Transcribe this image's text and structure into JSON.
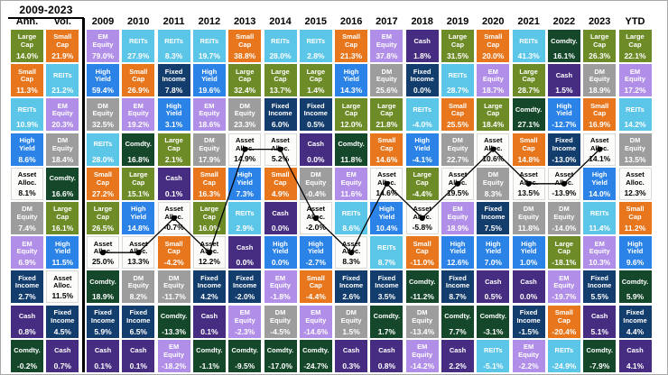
{
  "chart_data": {
    "type": "table",
    "title": "2009-2023",
    "subtype": "asset-class-returns-quilt",
    "line_series": "Asset Alloc.",
    "line_columns": [
      "2009",
      "2010",
      "2011",
      "2012",
      "2013",
      "2014",
      "2015",
      "2016",
      "2017",
      "2018",
      "2019",
      "2020",
      "2021",
      "2022",
      "2023"
    ],
    "assets": {
      "Large Cap": {
        "color": "#6d8b26",
        "text": "#ffffff"
      },
      "Small Cap": {
        "color": "#e8761d",
        "text": "#ffffff"
      },
      "REITs": {
        "color": "#5bc6e8",
        "text": "#ffffff"
      },
      "EM Equity": {
        "color": "#b18ee8",
        "text": "#ffffff"
      },
      "DM Equity": {
        "color": "#9d9d9d",
        "text": "#ffffff"
      },
      "High Yield": {
        "color": "#2b83e8",
        "text": "#ffffff"
      },
      "Fixed Income": {
        "color": "#133d6d",
        "text": "#ffffff"
      },
      "Asset Alloc.": {
        "color": "#fcfcfa",
        "text": "#000000"
      },
      "Cash": {
        "color": "#472d82",
        "text": "#ffffff"
      },
      "Comdty.": {
        "color": "#15482a",
        "text": "#ffffff"
      }
    },
    "columns": [
      {
        "label": "Ann.",
        "cells": [
          {
            "asset": "Large Cap",
            "value": "14.0%"
          },
          {
            "asset": "Small Cap",
            "value": "11.3%"
          },
          {
            "asset": "REITs",
            "value": "10.9%"
          },
          {
            "asset": "High Yield",
            "value": "8.6%"
          },
          {
            "asset": "Asset Alloc.",
            "value": "8.1%"
          },
          {
            "asset": "DM Equity",
            "value": "7.4%"
          },
          {
            "asset": "EM Equity",
            "value": "6.9%"
          },
          {
            "asset": "Fixed Income",
            "value": "2.7%"
          },
          {
            "asset": "Cash",
            "value": "0.8%"
          },
          {
            "asset": "Comdty.",
            "value": "-0.2%"
          }
        ]
      },
      {
        "label": "Vol.",
        "cells": [
          {
            "asset": "Small Cap",
            "value": "21.9%"
          },
          {
            "asset": "REITs",
            "value": "21.2%"
          },
          {
            "asset": "EM Equity",
            "value": "20.3%"
          },
          {
            "asset": "DM Equity",
            "value": "18.4%"
          },
          {
            "asset": "Comdty.",
            "value": "16.6%"
          },
          {
            "asset": "Large Cap",
            "value": "16.1%"
          },
          {
            "asset": "High Yield",
            "value": "11.5%"
          },
          {
            "asset": "Asset Alloc.",
            "value": "11.5%"
          },
          {
            "asset": "Fixed Income",
            "value": "4.5%"
          },
          {
            "asset": "Cash",
            "value": "0.7%"
          }
        ]
      },
      {
        "label": "2009",
        "cells": [
          {
            "asset": "EM Equity",
            "value": "79.0%"
          },
          {
            "asset": "High Yield",
            "value": "59.4%"
          },
          {
            "asset": "DM Equity",
            "value": "32.5%"
          },
          {
            "asset": "REITs",
            "value": "28.0%"
          },
          {
            "asset": "Small Cap",
            "value": "27.2%"
          },
          {
            "asset": "Large Cap",
            "value": "26.5%"
          },
          {
            "asset": "Asset Alloc.",
            "value": "25.0%"
          },
          {
            "asset": "Comdty.",
            "value": "18.9%"
          },
          {
            "asset": "Fixed Income",
            "value": "5.9%"
          },
          {
            "asset": "Cash",
            "value": "0.1%"
          }
        ]
      },
      {
        "label": "2010",
        "cells": [
          {
            "asset": "REITs",
            "value": "27.9%"
          },
          {
            "asset": "Small Cap",
            "value": "26.9%"
          },
          {
            "asset": "EM Equity",
            "value": "19.2%"
          },
          {
            "asset": "Comdty.",
            "value": "16.8%"
          },
          {
            "asset": "Large Cap",
            "value": "15.1%"
          },
          {
            "asset": "High Yield",
            "value": "14.8%"
          },
          {
            "asset": "Asset Alloc.",
            "value": "13.3%"
          },
          {
            "asset": "DM Equity",
            "value": "8.2%"
          },
          {
            "asset": "Fixed Income",
            "value": "6.5%"
          },
          {
            "asset": "Cash",
            "value": "0.1%"
          }
        ]
      },
      {
        "label": "2011",
        "cells": [
          {
            "asset": "REITs",
            "value": "8.3%"
          },
          {
            "asset": "Fixed Income",
            "value": "7.8%"
          },
          {
            "asset": "High Yield",
            "value": "3.1%"
          },
          {
            "asset": "Large Cap",
            "value": "2.1%"
          },
          {
            "asset": "Cash",
            "value": "0.1%"
          },
          {
            "asset": "Asset Alloc.",
            "value": "-0.7%"
          },
          {
            "asset": "Small Cap",
            "value": "-4.2%"
          },
          {
            "asset": "DM Equity",
            "value": "-11.7%"
          },
          {
            "asset": "Comdty.",
            "value": "-13.3%"
          },
          {
            "asset": "EM Equity",
            "value": "-18.2%"
          }
        ]
      },
      {
        "label": "2012",
        "cells": [
          {
            "asset": "REITs",
            "value": "19.7%"
          },
          {
            "asset": "High Yield",
            "value": "19.6%"
          },
          {
            "asset": "EM Equity",
            "value": "18.6%"
          },
          {
            "asset": "DM Equity",
            "value": "17.9%"
          },
          {
            "asset": "Small Cap",
            "value": "16.3%"
          },
          {
            "asset": "Large Cap",
            "value": "16.0%"
          },
          {
            "asset": "Asset Alloc.",
            "value": "12.2%"
          },
          {
            "asset": "Fixed Income",
            "value": "4.2%"
          },
          {
            "asset": "Cash",
            "value": "0.1%"
          },
          {
            "asset": "Comdty.",
            "value": "-1.1%"
          }
        ]
      },
      {
        "label": "2013",
        "cells": [
          {
            "asset": "Small Cap",
            "value": "38.8%"
          },
          {
            "asset": "Large Cap",
            "value": "32.4%"
          },
          {
            "asset": "DM Equity",
            "value": "23.3%"
          },
          {
            "asset": "Asset Alloc.",
            "value": "14.9%"
          },
          {
            "asset": "High Yield",
            "value": "7.3%"
          },
          {
            "asset": "REITs",
            "value": "2.9%"
          },
          {
            "asset": "Cash",
            "value": "0.0%"
          },
          {
            "asset": "Fixed Income",
            "value": "-2.0%"
          },
          {
            "asset": "EM Equity",
            "value": "-2.3%"
          },
          {
            "asset": "Comdty.",
            "value": "-9.5%"
          }
        ]
      },
      {
        "label": "2014",
        "cells": [
          {
            "asset": "REITs",
            "value": "28.0%"
          },
          {
            "asset": "Large Cap",
            "value": "13.7%"
          },
          {
            "asset": "Fixed Income",
            "value": "6.0%"
          },
          {
            "asset": "Asset Alloc.",
            "value": "5.2%"
          },
          {
            "asset": "Small Cap",
            "value": "4.9%"
          },
          {
            "asset": "Cash",
            "value": "0.0%"
          },
          {
            "asset": "High Yield",
            "value": "0.0%"
          },
          {
            "asset": "EM Equity",
            "value": "-1.8%"
          },
          {
            "asset": "DM Equity",
            "value": "-4.5%"
          },
          {
            "asset": "Comdty.",
            "value": "-17.0%"
          }
        ]
      },
      {
        "label": "2015",
        "cells": [
          {
            "asset": "REITs",
            "value": "2.8%"
          },
          {
            "asset": "Large Cap",
            "value": "1.4%"
          },
          {
            "asset": "Fixed Income",
            "value": "0.5%"
          },
          {
            "asset": "Cash",
            "value": "0.0%"
          },
          {
            "asset": "DM Equity",
            "value": "-0.4%"
          },
          {
            "asset": "Asset Alloc.",
            "value": "-2.0%"
          },
          {
            "asset": "High Yield",
            "value": "-2.7%"
          },
          {
            "asset": "Small Cap",
            "value": "-4.4%"
          },
          {
            "asset": "EM Equity",
            "value": "-14.6%"
          },
          {
            "asset": "Comdty.",
            "value": "-24.7%"
          }
        ]
      },
      {
        "label": "2016",
        "cells": [
          {
            "asset": "Small Cap",
            "value": "21.3%"
          },
          {
            "asset": "High Yield",
            "value": "14.3%"
          },
          {
            "asset": "Large Cap",
            "value": "12.0%"
          },
          {
            "asset": "Comdty.",
            "value": "11.8%"
          },
          {
            "asset": "EM Equity",
            "value": "11.6%"
          },
          {
            "asset": "REITs",
            "value": "8.6%"
          },
          {
            "asset": "Asset Alloc.",
            "value": "8.3%"
          },
          {
            "asset": "Fixed Income",
            "value": "2.6%"
          },
          {
            "asset": "DM Equity",
            "value": "1.5%"
          },
          {
            "asset": "Cash",
            "value": "0.3%"
          }
        ]
      },
      {
        "label": "2017",
        "cells": [
          {
            "asset": "EM Equity",
            "value": "37.8%"
          },
          {
            "asset": "DM Equity",
            "value": "25.6%"
          },
          {
            "asset": "Large Cap",
            "value": "21.8%"
          },
          {
            "asset": "Small Cap",
            "value": "14.6%"
          },
          {
            "asset": "Asset Alloc.",
            "value": "14.6%"
          },
          {
            "asset": "High Yield",
            "value": "10.4%"
          },
          {
            "asset": "REITs",
            "value": "8.7%"
          },
          {
            "asset": "Fixed Income",
            "value": "3.5%"
          },
          {
            "asset": "Comdty.",
            "value": "1.7%"
          },
          {
            "asset": "Cash",
            "value": "0.8%"
          }
        ]
      },
      {
        "label": "2018",
        "cells": [
          {
            "asset": "Cash",
            "value": "1.8%"
          },
          {
            "asset": "Fixed Income",
            "value": "0.0%"
          },
          {
            "asset": "REITs",
            "value": "-4.0%"
          },
          {
            "asset": "High Yield",
            "value": "-4.1%"
          },
          {
            "asset": "Large Cap",
            "value": "-4.4%"
          },
          {
            "asset": "Asset Alloc.",
            "value": "-5.8%"
          },
          {
            "asset": "Small Cap",
            "value": "-11.0%"
          },
          {
            "asset": "Comdty.",
            "value": "-11.2%"
          },
          {
            "asset": "DM Equity",
            "value": "-13.4%"
          },
          {
            "asset": "EM Equity",
            "value": "-14.2%"
          }
        ]
      },
      {
        "label": "2019",
        "cells": [
          {
            "asset": "Large Cap",
            "value": "31.5%"
          },
          {
            "asset": "REITs",
            "value": "28.7%"
          },
          {
            "asset": "Small Cap",
            "value": "25.5%"
          },
          {
            "asset": "DM Equity",
            "value": "22.7%"
          },
          {
            "asset": "Asset Alloc.",
            "value": "19.5%"
          },
          {
            "asset": "EM Equity",
            "value": "18.9%"
          },
          {
            "asset": "High Yield",
            "value": "12.6%"
          },
          {
            "asset": "Fixed Income",
            "value": "8.7%"
          },
          {
            "asset": "Comdty.",
            "value": "7.7%"
          },
          {
            "asset": "Cash",
            "value": "2.2%"
          }
        ]
      },
      {
        "label": "2020",
        "cells": [
          {
            "asset": "Small Cap",
            "value": "20.0%"
          },
          {
            "asset": "EM Equity",
            "value": "18.7%"
          },
          {
            "asset": "Large Cap",
            "value": "18.4%"
          },
          {
            "asset": "Asset Alloc.",
            "value": "10.6%"
          },
          {
            "asset": "DM Equity",
            "value": "8.3%"
          },
          {
            "asset": "Fixed Income",
            "value": "7.5%"
          },
          {
            "asset": "High Yield",
            "value": "7.0%"
          },
          {
            "asset": "Cash",
            "value": "0.5%"
          },
          {
            "asset": "Comdty.",
            "value": "-3.1%"
          },
          {
            "asset": "REITs",
            "value": "-5.1%"
          }
        ]
      },
      {
        "label": "2021",
        "cells": [
          {
            "asset": "REITs",
            "value": "41.3%"
          },
          {
            "asset": "Large Cap",
            "value": "28.7%"
          },
          {
            "asset": "Comdty.",
            "value": "27.1%"
          },
          {
            "asset": "Small Cap",
            "value": "14.8%"
          },
          {
            "asset": "Asset Alloc.",
            "value": "13.5%"
          },
          {
            "asset": "DM Equity",
            "value": "11.8%"
          },
          {
            "asset": "High Yield",
            "value": "1.0%"
          },
          {
            "asset": "Cash",
            "value": "0.0%"
          },
          {
            "asset": "Fixed Income",
            "value": "-1.5%"
          },
          {
            "asset": "EM Equity",
            "value": "-2.2%"
          }
        ]
      },
      {
        "label": "2022",
        "cells": [
          {
            "asset": "Comdty.",
            "value": "16.1%"
          },
          {
            "asset": "Cash",
            "value": "1.5%"
          },
          {
            "asset": "High Yield",
            "value": "-12.7%"
          },
          {
            "asset": "Fixed Income",
            "value": "-13.0%"
          },
          {
            "asset": "Asset Alloc.",
            "value": "-13.9%"
          },
          {
            "asset": "DM Equity",
            "value": "-14.0%"
          },
          {
            "asset": "Large Cap",
            "value": "-18.1%"
          },
          {
            "asset": "EM Equity",
            "value": "-19.7%"
          },
          {
            "asset": "Small Cap",
            "value": "-20.4%"
          },
          {
            "asset": "REITs",
            "value": "-24.9%"
          }
        ]
      },
      {
        "label": "2023",
        "cells": [
          {
            "asset": "Large Cap",
            "value": "26.3%"
          },
          {
            "asset": "DM Equity",
            "value": "18.9%"
          },
          {
            "asset": "Small Cap",
            "value": "16.9%"
          },
          {
            "asset": "Asset Alloc.",
            "value": "14.1%"
          },
          {
            "asset": "High Yield",
            "value": "14.0%"
          },
          {
            "asset": "REITs",
            "value": "11.4%"
          },
          {
            "asset": "EM Equity",
            "value": "10.3%"
          },
          {
            "asset": "Fixed Income",
            "value": "5.5%"
          },
          {
            "asset": "Cash",
            "value": "5.1%"
          },
          {
            "asset": "Comdty.",
            "value": "-7.9%"
          }
        ]
      },
      {
        "label": "YTD",
        "cells": [
          {
            "asset": "Large Cap",
            "value": "22.1%"
          },
          {
            "asset": "EM Equity",
            "value": "17.2%"
          },
          {
            "asset": "REITs",
            "value": "14.2%"
          },
          {
            "asset": "DM Equity",
            "value": "13.5%"
          },
          {
            "asset": "Asset Alloc.",
            "value": "12.3%"
          },
          {
            "asset": "Small Cap",
            "value": "11.2%"
          },
          {
            "asset": "High Yield",
            "value": "9.6%"
          },
          {
            "asset": "Comdty.",
            "value": "5.9%"
          },
          {
            "asset": "Fixed Income",
            "value": "4.4%"
          },
          {
            "asset": "Cash",
            "value": "4.1%"
          }
        ]
      }
    ]
  }
}
